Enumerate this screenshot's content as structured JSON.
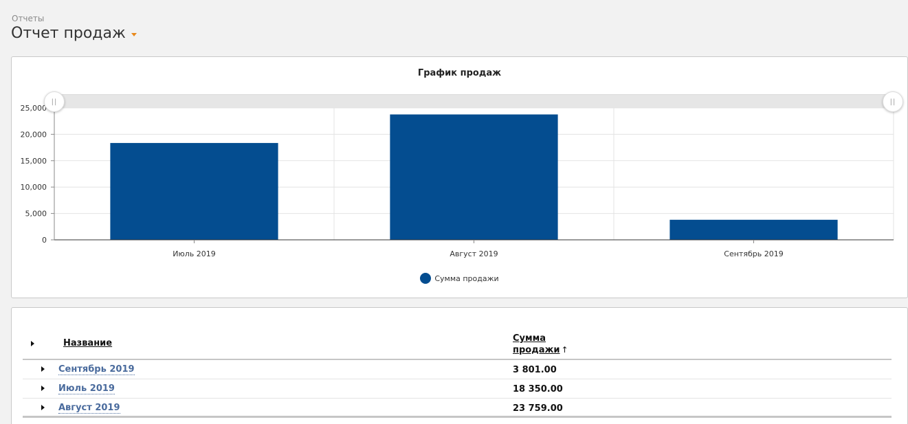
{
  "header": {
    "breadcrumb": "Отчеты",
    "title": "Отчет продаж"
  },
  "colors": {
    "bar": "#044d90",
    "accent_caret": "#e8891c",
    "link": "#4a6b9d"
  },
  "chart_data": {
    "type": "bar",
    "title": "График продаж",
    "categories": [
      "Июль 2019",
      "Август 2019",
      "Сентябрь 2019"
    ],
    "series": [
      {
        "name": "Сумма продажи",
        "values": [
          18350,
          23759,
          3801
        ]
      }
    ],
    "ylim": [
      0,
      25000
    ],
    "yticks": [
      0,
      5000,
      10000,
      15000,
      20000,
      25000
    ],
    "ytick_labels": [
      "0",
      "5,000",
      "10,000",
      "15,000",
      "20,000",
      "25,000"
    ],
    "grid": true,
    "legend_position": "bottom-center"
  },
  "table": {
    "columns": {
      "name": "Название",
      "sum_line1": "Сумма",
      "sum_line2": "продажи",
      "sort_indicator": "↑"
    },
    "rows": [
      {
        "name": "Сентябрь 2019",
        "sum": "3 801.00"
      },
      {
        "name": "Июль 2019",
        "sum": "18 350.00"
      },
      {
        "name": "Август 2019",
        "sum": "23 759.00"
      }
    ]
  }
}
